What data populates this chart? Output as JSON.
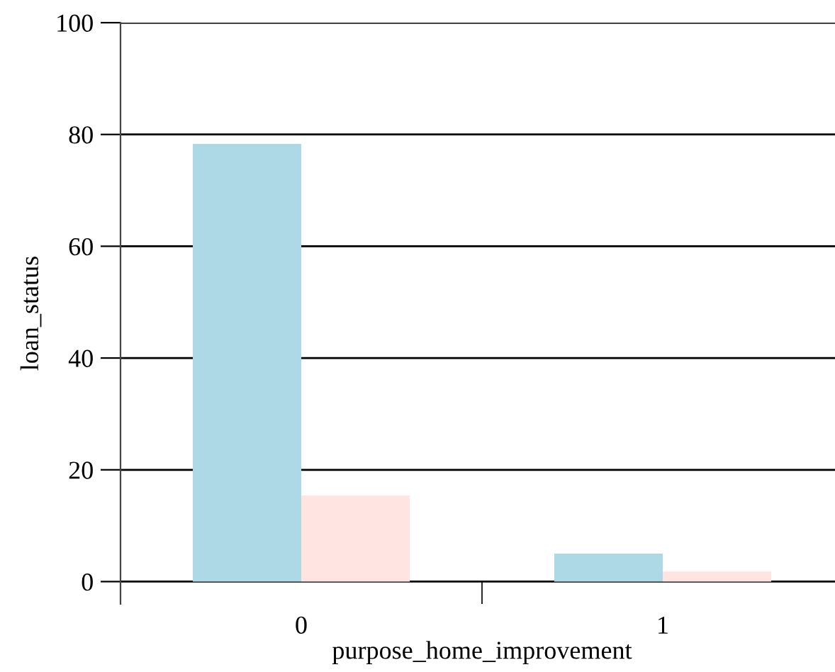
{
  "chart_data": {
    "type": "bar",
    "xlabel": "purpose_home_improvement",
    "ylabel": "loan_status",
    "categories": [
      "0",
      "1"
    ],
    "series": [
      {
        "color": "#add8e6",
        "values": [
          78.3,
          5.0
        ]
      },
      {
        "color": "#ffe4e1",
        "values": [
          15.4,
          1.8
        ]
      }
    ],
    "ylim": [
      -4,
      100
    ],
    "yticks": [
      0,
      20,
      40,
      60,
      80,
      100
    ],
    "grid": "y",
    "legend": false
  }
}
